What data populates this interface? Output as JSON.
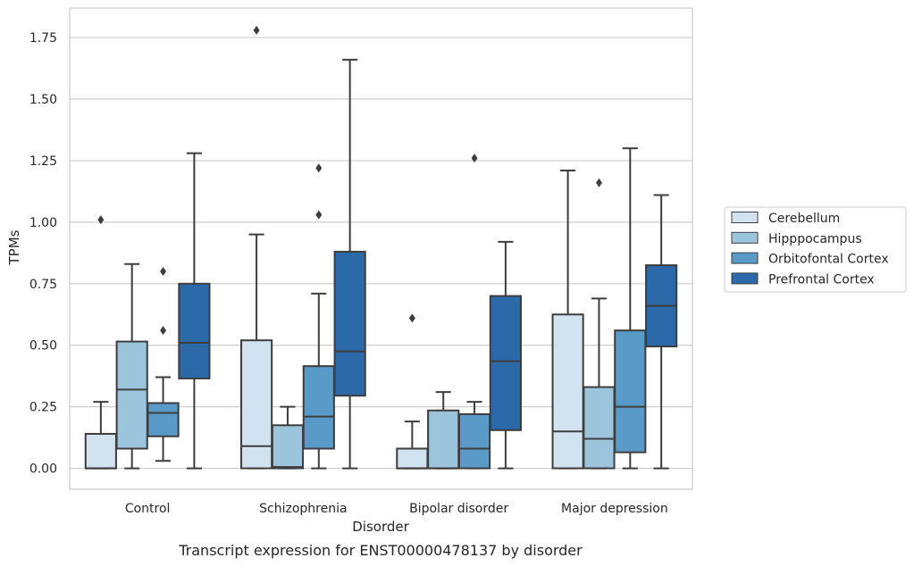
{
  "chart_data": {
    "type": "box",
    "caption": "Transcript expression for ENST00000478137 by disorder",
    "xlabel": "Disorder",
    "ylabel": "TPMs",
    "ylim": [
      -0.085,
      1.87
    ],
    "yticks": [
      0.0,
      0.25,
      0.5,
      0.75,
      1.0,
      1.25,
      1.5,
      1.75
    ],
    "ytick_labels": [
      "0.00",
      "0.25",
      "0.50",
      "0.75",
      "1.00",
      "1.25",
      "1.50",
      "1.75"
    ],
    "grid": "horizontal",
    "legend_position": "right",
    "categories": [
      "Control",
      "Schizophrenia",
      "Bipolar disorder",
      "Major depression"
    ],
    "series": [
      {
        "name": "Cerebellum",
        "color": "#d1e2f1",
        "boxes": [
          {
            "whislo": 0.0,
            "q1": 0.0,
            "med": 0.0,
            "q3": 0.14,
            "whishi": 0.27,
            "fliers": [
              1.01
            ]
          },
          {
            "whislo": 0.0,
            "q1": 0.0,
            "med": 0.09,
            "q3": 0.52,
            "whishi": 0.95,
            "fliers": [
              1.78
            ]
          },
          {
            "whislo": 0.0,
            "q1": 0.0,
            "med": 0.0,
            "q3": 0.08,
            "whishi": 0.19,
            "fliers": [
              0.61
            ]
          },
          {
            "whislo": 0.0,
            "q1": 0.0,
            "med": 0.15,
            "q3": 0.625,
            "whishi": 1.21,
            "fliers": []
          }
        ]
      },
      {
        "name": "Hipppocampus",
        "color": "#9cc4dd",
        "boxes": [
          {
            "whislo": 0.0,
            "q1": 0.08,
            "med": 0.32,
            "q3": 0.515,
            "whishi": 0.83,
            "fliers": []
          },
          {
            "whislo": 0.0,
            "q1": 0.0,
            "med": 0.005,
            "q3": 0.175,
            "whishi": 0.25,
            "fliers": []
          },
          {
            "whislo": 0.0,
            "q1": 0.0,
            "med": 0.0,
            "q3": 0.235,
            "whishi": 0.31,
            "fliers": []
          },
          {
            "whislo": 0.0,
            "q1": 0.0,
            "med": 0.12,
            "q3": 0.33,
            "whishi": 0.69,
            "fliers": [
              1.16
            ]
          }
        ]
      },
      {
        "name": "Orbitofontal Cortex",
        "color": "#5a9ac9",
        "boxes": [
          {
            "whislo": 0.03,
            "q1": 0.13,
            "med": 0.225,
            "q3": 0.265,
            "whishi": 0.37,
            "fliers": [
              0.56,
              0.8
            ]
          },
          {
            "whislo": 0.0,
            "q1": 0.08,
            "med": 0.21,
            "q3": 0.415,
            "whishi": 0.71,
            "fliers": [
              1.03,
              1.22
            ]
          },
          {
            "whislo": 0.0,
            "q1": 0.0,
            "med": 0.08,
            "q3": 0.22,
            "whishi": 0.27,
            "fliers": [
              1.26
            ]
          },
          {
            "whislo": 0.0,
            "q1": 0.065,
            "med": 0.25,
            "q3": 0.56,
            "whishi": 1.3,
            "fliers": []
          }
        ]
      },
      {
        "name": "Prefrontal Cortex",
        "color": "#2b69a8",
        "boxes": [
          {
            "whislo": 0.0,
            "q1": 0.365,
            "med": 0.51,
            "q3": 0.75,
            "whishi": 1.28,
            "fliers": []
          },
          {
            "whislo": 0.0,
            "q1": 0.295,
            "med": 0.475,
            "q3": 0.88,
            "whishi": 1.66,
            "fliers": []
          },
          {
            "whislo": 0.0,
            "q1": 0.155,
            "med": 0.435,
            "q3": 0.7,
            "whishi": 0.92,
            "fliers": []
          },
          {
            "whislo": 0.0,
            "q1": 0.495,
            "med": 0.66,
            "q3": 0.825,
            "whishi": 1.11,
            "fliers": []
          }
        ]
      }
    ]
  }
}
